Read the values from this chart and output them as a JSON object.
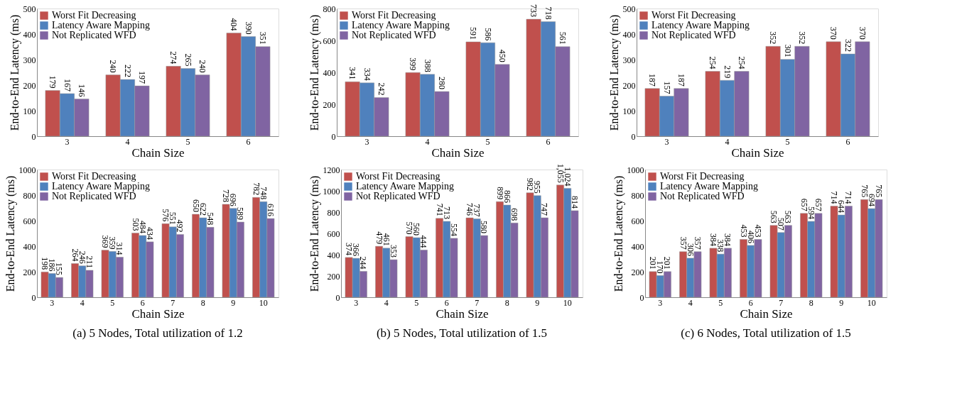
{
  "chart_data": [
    {
      "type": "bar",
      "xlabel": "Chain Size",
      "ylabel": "End-to-End Latency (ms)",
      "categories": [
        "3",
        "4",
        "5",
        "6"
      ],
      "ylim": [
        0,
        500
      ],
      "yticks": [
        0,
        100,
        200,
        300,
        400,
        500
      ],
      "grid": false,
      "legend": "top left",
      "data_labels": true,
      "series": [
        {
          "name": "Worst Fit Decreasing",
          "color": "#c0504d",
          "values": [
            179,
            240,
            274,
            404
          ]
        },
        {
          "name": "Latency Aware Mapping",
          "color": "#4f81bd",
          "values": [
            167,
            222,
            265,
            390
          ]
        },
        {
          "name": "Not Replicated WFD",
          "color": "#8064a2",
          "values": [
            146,
            197,
            240,
            351
          ]
        }
      ]
    },
    {
      "type": "bar",
      "xlabel": "Chain Size",
      "ylabel": "End-to-End Latency (ms)",
      "categories": [
        "3",
        "4",
        "5",
        "6"
      ],
      "ylim": [
        0,
        800
      ],
      "yticks": [
        0,
        200,
        400,
        600,
        800
      ],
      "grid": false,
      "legend": "top left",
      "data_labels": true,
      "series": [
        {
          "name": "Worst Fit Decreasing",
          "color": "#c0504d",
          "values": [
            341,
            399,
            591,
            733
          ]
        },
        {
          "name": "Latency Aware Mapping",
          "color": "#4f81bd",
          "values": [
            334,
            388,
            586,
            718
          ]
        },
        {
          "name": "Not Replicated WFD",
          "color": "#8064a2",
          "values": [
            242,
            280,
            450,
            561
          ]
        }
      ]
    },
    {
      "type": "bar",
      "xlabel": "Chain Size",
      "ylabel": "End-to-End Latency (ms)",
      "categories": [
        "3",
        "4",
        "5",
        "6"
      ],
      "ylim": [
        0,
        500
      ],
      "yticks": [
        0,
        100,
        200,
        300,
        400,
        500
      ],
      "grid": false,
      "legend": "top left",
      "data_labels": true,
      "series": [
        {
          "name": "Worst Fit Decreasing",
          "color": "#c0504d",
          "values": [
            187,
            254,
            352,
            370
          ]
        },
        {
          "name": "Latency Aware Mapping",
          "color": "#4f81bd",
          "values": [
            157,
            219,
            301,
            322
          ]
        },
        {
          "name": "Not Replicated WFD",
          "color": "#8064a2",
          "values": [
            187,
            254,
            352,
            370
          ]
        }
      ]
    },
    {
      "type": "bar",
      "xlabel": "Chain Size",
      "ylabel": "End-to-End Latency (ms)",
      "categories": [
        "3",
        "4",
        "5",
        "6",
        "7",
        "8",
        "9",
        "10"
      ],
      "ylim": [
        0,
        1000
      ],
      "yticks": [
        0,
        200,
        400,
        600,
        800,
        1000
      ],
      "grid": false,
      "legend": "top left",
      "data_labels": true,
      "annotations": [
        "(a) 5 Nodes, Total utilization of 1.2"
      ],
      "series": [
        {
          "name": "Worst Fit Decreasing",
          "color": "#c0504d",
          "values": [
            198,
            264,
            369,
            503,
            576,
            650,
            728,
            782
          ]
        },
        {
          "name": "Latency Aware Mapping",
          "color": "#4f81bd",
          "values": [
            186,
            246,
            359,
            484,
            551,
            622,
            696,
            748
          ]
        },
        {
          "name": "Not Replicated WFD",
          "color": "#8064a2",
          "values": [
            155,
            211,
            314,
            434,
            492,
            548,
            589,
            616
          ]
        }
      ]
    },
    {
      "type": "bar",
      "xlabel": "Chain Size",
      "ylabel": "End-to-End Latency (ms)",
      "categories": [
        "3",
        "4",
        "5",
        "6",
        "7",
        "8",
        "9",
        "10"
      ],
      "ylim": [
        0,
        1200
      ],
      "yticks": [
        0,
        200,
        400,
        600,
        800,
        1000,
        1200
      ],
      "grid": false,
      "legend": "top left",
      "annotations": [
        "(b) 5 Nodes, Total utilization of 1.5"
      ],
      "series": [
        {
          "name": "Worst Fit Decreasing",
          "color": "#c0504d",
          "values": [
            374,
            479,
            570,
            741,
            746,
            899,
            982,
            1055
          ],
          "value_labels": [
            "374",
            "479",
            "570",
            "741",
            "746",
            "899",
            "982",
            "1,055"
          ]
        },
        {
          "name": "Latency Aware Mapping",
          "color": "#4f81bd",
          "values": [
            366,
            461,
            560,
            713,
            737,
            866,
            955,
            1024
          ],
          "value_labels": [
            "366",
            "461",
            "560",
            "713",
            "737",
            "866",
            "955",
            "1,024"
          ]
        },
        {
          "name": "Not Replicated WFD",
          "color": "#8064a2",
          "values": [
            244,
            353,
            444,
            554,
            580,
            698,
            747,
            814
          ],
          "value_labels": [
            "244",
            "353",
            "444",
            "554",
            "580",
            "698",
            "747",
            "814"
          ]
        }
      ]
    },
    {
      "type": "bar",
      "xlabel": "Chain Size",
      "ylabel": "End-to-End Latency (ms)",
      "categories": [
        "3",
        "4",
        "5",
        "6",
        "7",
        "8",
        "9",
        "10"
      ],
      "ylim": [
        0,
        1000
      ],
      "yticks": [
        0,
        200,
        400,
        600,
        800,
        1000
      ],
      "grid": false,
      "legend": "top left",
      "data_labels": true,
      "annotations": [
        "(c) 6 Nodes, Total utilization of 1.5"
      ],
      "series": [
        {
          "name": "Worst Fit Decreasing",
          "color": "#c0504d",
          "values": [
            201,
            357,
            384,
            453,
            563,
            657,
            714,
            765
          ]
        },
        {
          "name": "Latency Aware Mapping",
          "color": "#4f81bd",
          "values": [
            170,
            306,
            338,
            406,
            507,
            594,
            644,
            694
          ]
        },
        {
          "name": "Not Replicated WFD",
          "color": "#8064a2",
          "values": [
            201,
            357,
            384,
            453,
            563,
            657,
            714,
            765
          ]
        }
      ]
    }
  ]
}
